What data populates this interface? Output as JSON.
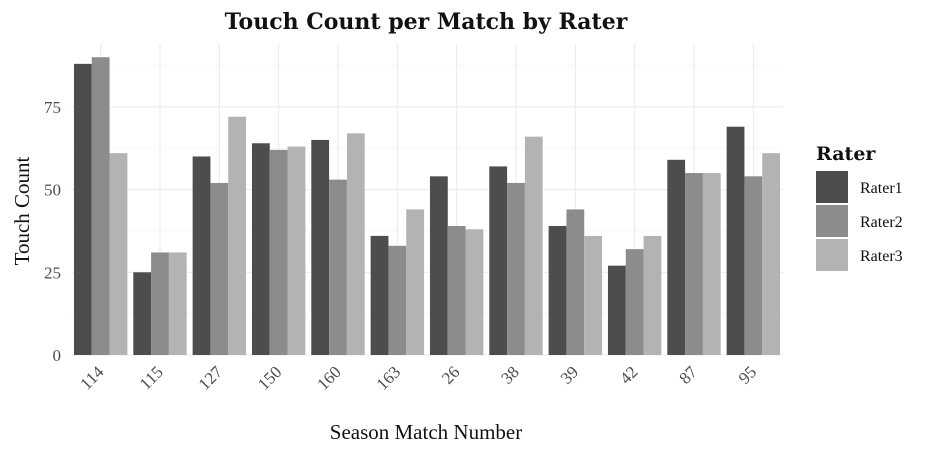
{
  "chart_data": {
    "type": "bar",
    "title": "Touch Count per Match by Rater",
    "xlabel": "Season Match Number",
    "ylabel": "Touch Count",
    "categories": [
      "114",
      "115",
      "127",
      "150",
      "160",
      "163",
      "26",
      "38",
      "39",
      "42",
      "87",
      "95"
    ],
    "series": [
      {
        "name": "Rater1",
        "color": "#4d4d4d",
        "values": [
          88,
          25,
          60,
          64,
          65,
          36,
          54,
          57,
          39,
          27,
          59,
          69
        ]
      },
      {
        "name": "Rater2",
        "color": "#8c8c8c",
        "values": [
          90,
          31,
          52,
          62,
          53,
          33,
          39,
          52,
          44,
          32,
          55,
          54
        ]
      },
      {
        "name": "Rater3",
        "color": "#b3b3b3",
        "values": [
          61,
          31,
          72,
          63,
          67,
          44,
          38,
          66,
          36,
          36,
          55,
          61
        ]
      }
    ],
    "yticks": [
      0,
      25,
      50,
      75
    ],
    "ylim": [
      0,
      94
    ],
    "grid": true,
    "legend": {
      "title": "Rater",
      "position": "right"
    }
  }
}
